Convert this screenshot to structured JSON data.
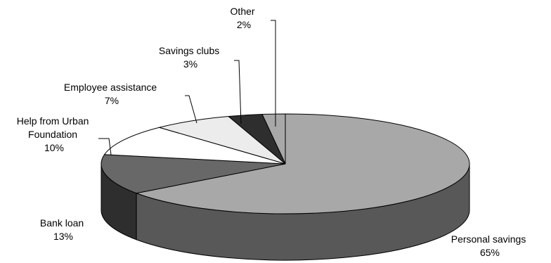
{
  "chart_data": {
    "type": "pie",
    "title": "",
    "slices": [
      {
        "name": "Personal savings",
        "value": 65,
        "label": "65%",
        "color": "#a8a8a8",
        "side": "#585858"
      },
      {
        "name": "Bank loan",
        "value": 13,
        "label": "13%",
        "color": "#686868",
        "side": "#2e2e2e"
      },
      {
        "name": "Help from Urban Foundation",
        "value": 10,
        "label": "10%",
        "color": "#ffffff",
        "side": "#d8d8d8"
      },
      {
        "name": "Employee assistance",
        "value": 7,
        "label": "7%",
        "color": "#ececec",
        "side": "#c8c8c8"
      },
      {
        "name": "Savings clubs",
        "value": 3,
        "label": "3%",
        "color": "#2e2e2e",
        "side": "#141414"
      },
      {
        "name": "Other",
        "value": 2,
        "label": "2%",
        "color": "#a8a8a8",
        "side": "#585858"
      }
    ],
    "legend": "none",
    "style": "3d-pie"
  }
}
